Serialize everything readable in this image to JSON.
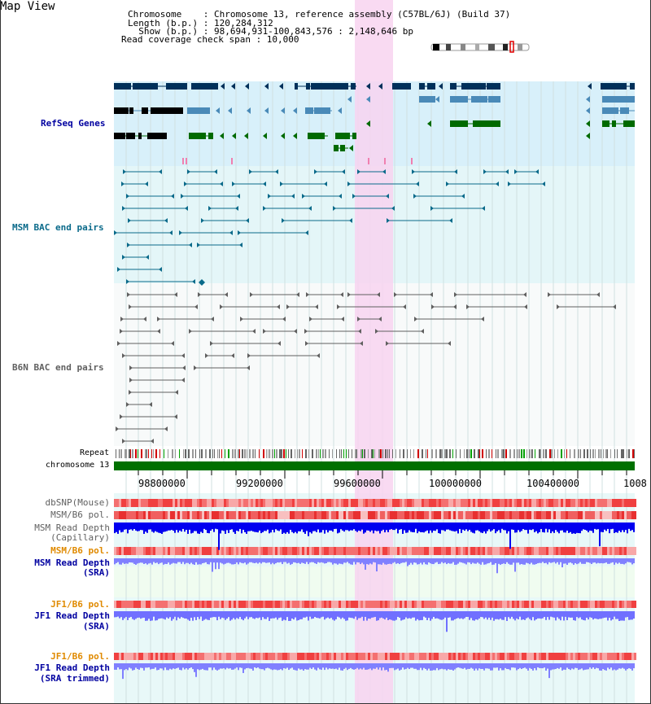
{
  "view": {
    "title": "Map View",
    "info_lines": [
      "Chromosome    : Chromosome 13, reference assembly (C57BL/6J) (Build 37)",
      "Length (b.p.) : 120,284,312",
      "  Show (b.p.) : 98,694,931-100,843,576 : 2,148,646 bp",
      "Read coverage check span : 10,000"
    ]
  },
  "tracks": {
    "refseq": "RefSeq Genes",
    "msm_bac": "MSM BAC end pairs",
    "b6n_bac": "B6N BAC end pairs",
    "repeat": "Repeat",
    "chromosome": "chromosome 13",
    "dbsnp": "dbSNP(Mouse)",
    "msm_b6_pol": "MSM/B6 pol.",
    "msm_depth_cap_1": "MSM Read Depth",
    "msm_depth_cap_2": "(Capillary)",
    "msm_b6_pol_2": "MSM/B6 pol.",
    "msm_depth_sra_1": "MSM Read Depth",
    "msm_depth_sra_2": "(SRA)",
    "jf1_b6_pol": "JF1/B6 pol.",
    "jf1_depth_sra_1": "JF1 Read Depth",
    "jf1_depth_sra_2": "(SRA)",
    "jf1_b6_pol_2": "JF1/B6 pol.",
    "jf1_depth_trim_1": "JF1 Read Depth",
    "jf1_depth_trim_2": "(SRA trimmed)"
  },
  "axis": {
    "ticks": [
      "98800000",
      "99200000",
      "99600000",
      "100000000",
      "100400000",
      "1008"
    ]
  },
  "colors": {
    "refseq_bg": "#d8f0fa",
    "highlight": "#f8d4f0",
    "chromosome": "#007000",
    "navy": "#00305a",
    "steel": "#4a8ab8",
    "green": "#006a00",
    "teal": "#0a6a8a",
    "grey": "#606060",
    "orange": "#e08a00",
    "blue_label": "#0000a0"
  }
}
